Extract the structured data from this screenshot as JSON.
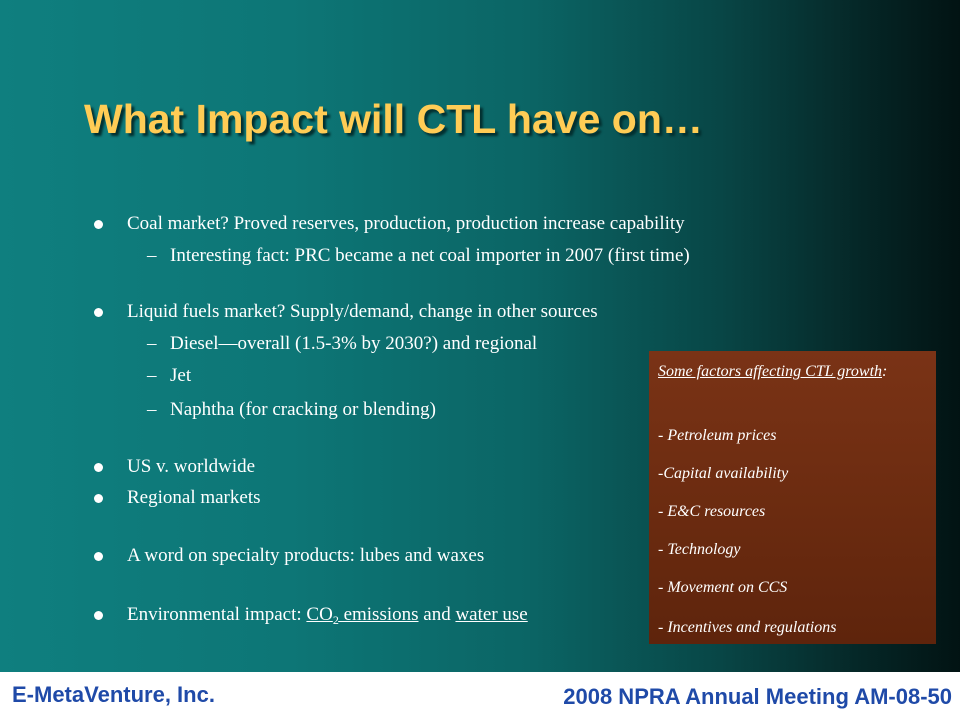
{
  "slide": {
    "title": "What Impact will CTL have on…",
    "bullets": {
      "coal": "Coal market?  Proved reserves, production, production increase capability",
      "coal_sub": "Interesting fact:  PRC became a net coal importer in 2007 (first time)",
      "liquid": "Liquid fuels market?  Supply/demand, change in other sources",
      "diesel": "Diesel—overall (1.5-3% by 2030?) and regional",
      "jet": "Jet",
      "naphtha": "Naphtha (for cracking or blending)",
      "us": "US v. worldwide",
      "regional": "Regional markets",
      "specialty": "A word on specialty products:  lubes and waxes",
      "env_prefix": "Environmental impact:  ",
      "env_co": "CO",
      "env_sub": "2",
      "env_emissions": " emissions",
      "env_and": " and ",
      "env_water": "water use"
    },
    "dash": "–"
  },
  "callout": {
    "heading": "Some factors affecting CTL growth",
    "colon": ":",
    "items": [
      "- Petroleum prices",
      "-Capital availability",
      "- E&C resources",
      "- Technology",
      "- Movement on CCS",
      "- Incentives and regulations"
    ]
  },
  "footer": {
    "company": "E-MetaVenture, Inc.",
    "meeting": "2008 NPRA Annual Meeting AM-08-50"
  },
  "colors": {
    "title": "#ffcc55",
    "footer_text": "#1f4aa8",
    "callout_bg": "#6b2b10",
    "background": "#0d7676"
  }
}
